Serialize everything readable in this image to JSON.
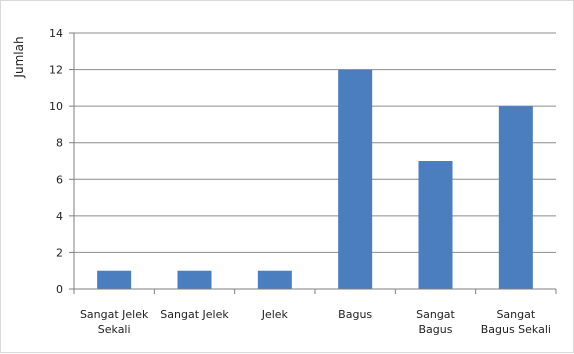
{
  "chart_data": {
    "type": "bar",
    "title": "",
    "xlabel": "",
    "ylabel": "Jumlah",
    "ylim": [
      0,
      14
    ],
    "yticks": [
      0,
      2,
      4,
      6,
      8,
      10,
      12,
      14
    ],
    "grid": true,
    "categories": [
      [
        "Sangat Jelek",
        "Sekali"
      ],
      [
        "Sangat Jelek"
      ],
      [
        "Jelek"
      ],
      [
        "Bagus"
      ],
      [
        "Sangat",
        "Bagus"
      ],
      [
        "Sangat",
        "Bagus Sekali"
      ]
    ],
    "values": [
      1,
      1,
      1,
      12,
      7,
      10
    ],
    "colors": {
      "bar": "#4a7ebf",
      "grid": "#8c8c8c",
      "axis": "#7f7f7f"
    }
  }
}
